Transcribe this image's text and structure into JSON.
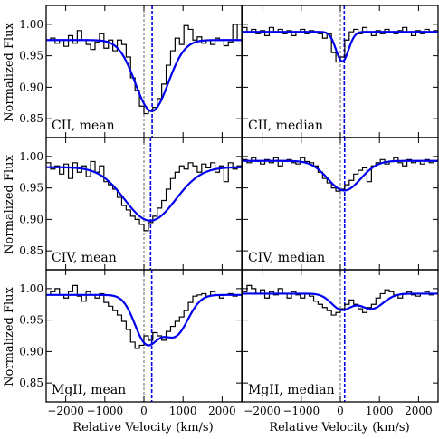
{
  "chart_data": {
    "type": "line",
    "layout": "3x2 grid, shared x axis per column, shared y axis per row",
    "xlabel": "Relative Velocity (km/s)",
    "ylabel": "Normalized Flux",
    "xlim": [
      -2500,
      2500
    ],
    "ylim": [
      0.82,
      1.03
    ],
    "x_ticks": [
      -2000,
      -1000,
      0,
      1000,
      2000
    ],
    "x_tick_labels": [
      "−2000",
      "−1000",
      "0",
      "1000",
      "2000"
    ],
    "y_ticks": [
      0.85,
      0.9,
      0.95,
      1.0
    ],
    "y_tick_labels": [
      "0.85",
      "0.90",
      "0.95",
      "1.00"
    ],
    "colors": {
      "data": "#000000",
      "fit": "#0000ee",
      "zero_line": "#808080",
      "centroid_line": "#0000ee",
      "frame": "#000000"
    },
    "panels": [
      {
        "label": "CII, mean",
        "fit": {
          "continuum": 0.975,
          "components": [
            {
              "center": 200,
              "depth": 0.113,
              "sigma": 420
            }
          ]
        },
        "centroid": 210,
        "data": [
          0.975,
          0.978,
          0.97,
          0.975,
          0.965,
          0.982,
          0.97,
          0.99,
          0.975,
          0.968,
          0.96,
          0.972,
          0.985,
          0.962,
          0.975,
          0.958,
          0.975,
          0.968,
          0.948,
          0.915,
          0.895,
          0.87,
          0.858,
          0.862,
          0.868,
          0.882,
          0.905,
          0.935,
          0.958,
          0.978,
          0.968,
          0.998,
          0.992,
          0.975,
          0.98,
          0.97,
          0.975,
          0.968,
          0.978,
          0.975,
          0.966,
          0.972,
          1.0,
          0.975
        ]
      },
      {
        "label": "CII, median",
        "fit": {
          "continuum": 0.988,
          "components": [
            {
              "center": 50,
              "depth": 0.047,
              "sigma": 160
            }
          ]
        },
        "centroid": 100,
        "data": [
          0.995,
          0.988,
          0.992,
          0.985,
          0.99,
          0.982,
          0.995,
          0.988,
          0.992,
          0.985,
          0.99,
          0.982,
          0.988,
          0.992,
          0.985,
          0.99,
          0.988,
          0.985,
          0.978,
          0.985,
          0.955,
          0.94,
          0.948,
          0.975,
          0.988,
          0.992,
          0.985,
          0.995,
          0.988,
          0.982,
          0.99,
          0.985,
          0.992,
          0.988,
          0.985,
          0.99,
          0.995,
          0.988,
          0.982,
          0.99,
          0.985,
          0.992,
          0.988,
          0.99
        ]
      },
      {
        "label": "CIV, mean",
        "fit": {
          "continuum": 0.983,
          "components": [
            {
              "center": 160,
              "depth": 0.085,
              "sigma": 650
            }
          ]
        },
        "centroid": 170,
        "data": [
          0.99,
          0.98,
          0.985,
          0.972,
          0.988,
          0.965,
          0.99,
          0.975,
          0.985,
          0.968,
          0.992,
          0.975,
          0.985,
          0.96,
          0.955,
          0.948,
          0.935,
          0.922,
          0.915,
          0.905,
          0.9,
          0.892,
          0.882,
          0.895,
          0.905,
          0.918,
          0.93,
          0.948,
          0.965,
          0.975,
          0.985,
          0.98,
          0.99,
          0.985,
          0.975,
          0.988,
          0.982,
          0.99,
          0.975,
          0.985,
          0.96,
          0.99,
          0.98,
          0.985
        ]
      },
      {
        "label": "CIV, median",
        "fit": {
          "continuum": 0.993,
          "components": [
            {
              "center": 100,
              "depth": 0.047,
              "sigma": 420
            }
          ]
        },
        "centroid": 110,
        "data": [
          0.995,
          0.99,
          0.998,
          0.992,
          0.988,
          0.995,
          0.99,
          0.998,
          0.985,
          0.992,
          0.995,
          0.99,
          0.988,
          0.998,
          0.992,
          0.99,
          0.985,
          0.975,
          0.965,
          0.958,
          0.95,
          0.945,
          0.948,
          0.955,
          0.962,
          0.972,
          0.978,
          0.982,
          0.96,
          0.985,
          0.99,
          0.995,
          0.988,
          0.992,
          0.998,
          0.99,
          0.985,
          0.995,
          0.99,
          0.992,
          0.988,
          0.995,
          0.99,
          0.992
        ]
      },
      {
        "label": "MgII, mean",
        "fit": {
          "continuum": 0.99,
          "components": [
            {
              "center": 60,
              "depth": 0.074,
              "sigma": 300
            },
            {
              "center": 800,
              "depth": 0.063,
              "sigma": 330
            }
          ]
        },
        "centroid": 200,
        "data": [
          0.99,
          0.995,
          1.0,
          0.99,
          0.985,
          0.995,
          1.005,
          0.988,
          0.98,
          0.995,
          0.99,
          0.985,
          0.992,
          0.978,
          0.972,
          0.965,
          0.958,
          0.948,
          0.935,
          0.915,
          0.905,
          0.91,
          0.925,
          0.918,
          0.93,
          0.925,
          0.918,
          0.932,
          0.94,
          0.948,
          0.955,
          0.965,
          0.978,
          0.988,
          0.99,
          0.992,
          0.988,
          0.995,
          0.99,
          0.985,
          0.99,
          0.992,
          0.988,
          0.99
        ]
      },
      {
        "label": "MgII, median",
        "fit": {
          "continuum": 0.992,
          "components": [
            {
              "center": 30,
              "depth": 0.025,
              "sigma": 260
            },
            {
              "center": 800,
              "depth": 0.024,
              "sigma": 300
            }
          ]
        },
        "centroid": 110,
        "data": [
          0.995,
          1.005,
          1.0,
          0.992,
          0.998,
          0.985,
          0.995,
          0.99,
          1.0,
          0.992,
          0.985,
          0.995,
          0.99,
          0.985,
          0.992,
          0.988,
          0.98,
          0.975,
          0.97,
          0.965,
          0.958,
          0.962,
          0.968,
          0.975,
          0.982,
          0.975,
          0.968,
          0.962,
          0.97,
          0.975,
          0.985,
          0.992,
          0.998,
          0.995,
          0.99,
          0.985,
          0.992,
          0.995,
          0.99,
          0.988,
          0.992,
          0.995,
          0.99,
          0.992
        ]
      }
    ]
  }
}
